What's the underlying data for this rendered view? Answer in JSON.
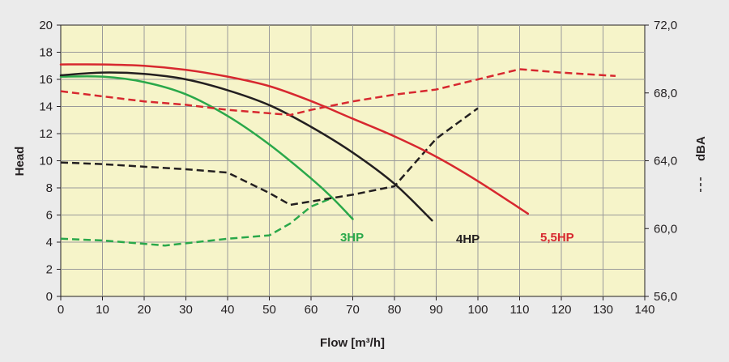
{
  "chart_data": {
    "type": "line",
    "xlabel": "Flow [m³/h]",
    "ylabel": "Head",
    "y2label": "dBA",
    "xlim": [
      0,
      140
    ],
    "ylim": [
      0,
      20
    ],
    "y2lim": [
      56,
      72
    ],
    "x_ticks": [
      "0",
      "10",
      "20",
      "30",
      "40",
      "50",
      "60",
      "70",
      "80",
      "90",
      "100",
      "110",
      "120",
      "130",
      "140"
    ],
    "y_ticks": [
      "0",
      "2",
      "4",
      "6",
      "8",
      "10",
      "12",
      "14",
      "16",
      "18",
      "20"
    ],
    "y2_ticks": [
      "56,0",
      "60,0",
      "64,0",
      "68,0",
      "72,0"
    ],
    "grid": true,
    "background_color": "#f6f4c9",
    "series": [
      {
        "name": "3HP",
        "color": "#2aa84a",
        "head": [
          [
            0,
            16.2
          ],
          [
            10,
            16.2
          ],
          [
            20,
            15.8
          ],
          [
            30,
            14.9
          ],
          [
            40,
            13.3
          ],
          [
            50,
            11.2
          ],
          [
            60,
            8.7
          ],
          [
            65,
            7.3
          ],
          [
            70,
            5.7
          ]
        ],
        "noise_dBA": [
          [
            0,
            59.4
          ],
          [
            10,
            59.3
          ],
          [
            25,
            59.0
          ],
          [
            40,
            59.4
          ],
          [
            50,
            59.6
          ],
          [
            55,
            60.3
          ],
          [
            60,
            61.3
          ],
          [
            65,
            61.8
          ]
        ]
      },
      {
        "name": "4HP",
        "color": "#231f20",
        "head": [
          [
            0,
            16.3
          ],
          [
            10,
            16.5
          ],
          [
            20,
            16.4
          ],
          [
            30,
            16.0
          ],
          [
            40,
            15.2
          ],
          [
            50,
            14.1
          ],
          [
            60,
            12.5
          ],
          [
            70,
            10.6
          ],
          [
            80,
            8.3
          ],
          [
            89,
            5.6
          ]
        ],
        "noise_dBA": [
          [
            0,
            63.9
          ],
          [
            10,
            63.8
          ],
          [
            30,
            63.5
          ],
          [
            40,
            63.3
          ],
          [
            50,
            62.1
          ],
          [
            55,
            61.4
          ],
          [
            60,
            61.6
          ],
          [
            70,
            62.0
          ],
          [
            80,
            62.5
          ],
          [
            90,
            65.3
          ],
          [
            100,
            67.1
          ]
        ]
      },
      {
        "name": "5,5HP",
        "color": "#d7282f",
        "head": [
          [
            0,
            17.1
          ],
          [
            10,
            17.1
          ],
          [
            20,
            17.0
          ],
          [
            30,
            16.7
          ],
          [
            40,
            16.2
          ],
          [
            50,
            15.5
          ],
          [
            60,
            14.4
          ],
          [
            70,
            13.1
          ],
          [
            80,
            11.8
          ],
          [
            90,
            10.3
          ],
          [
            100,
            8.5
          ],
          [
            112,
            6.1
          ]
        ],
        "noise_dBA": [
          [
            0,
            68.1
          ],
          [
            10,
            67.8
          ],
          [
            20,
            67.5
          ],
          [
            30,
            67.3
          ],
          [
            40,
            67.0
          ],
          [
            55,
            66.7
          ],
          [
            60,
            67.0
          ],
          [
            70,
            67.5
          ],
          [
            80,
            67.9
          ],
          [
            90,
            68.2
          ],
          [
            100,
            68.8
          ],
          [
            110,
            69.4
          ],
          [
            120,
            69.2
          ],
          [
            133,
            69.0
          ]
        ]
      }
    ]
  }
}
